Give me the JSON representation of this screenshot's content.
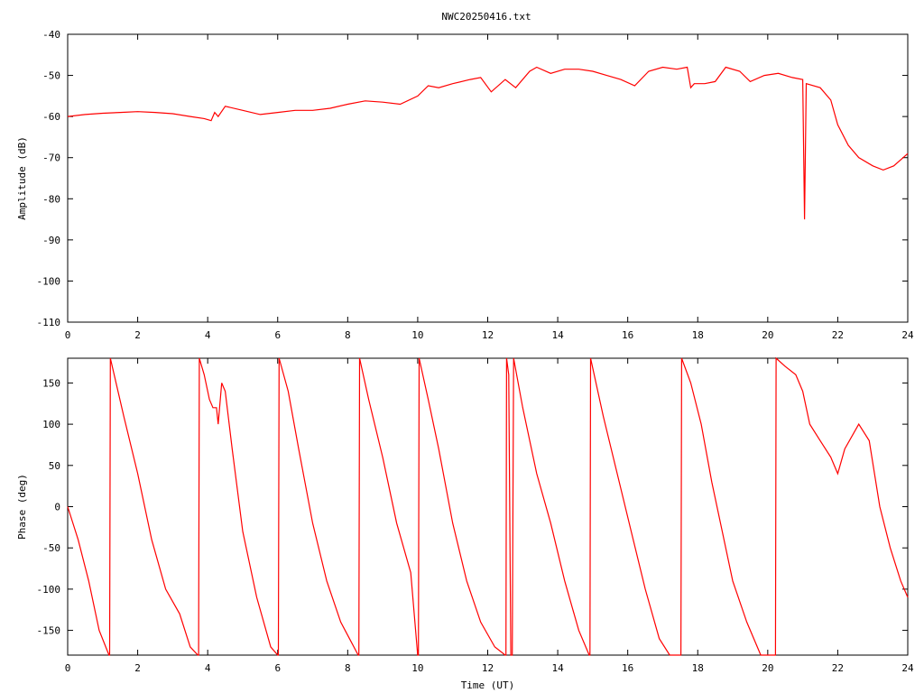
{
  "title": "NWC20250416.txt",
  "chart_data": [
    {
      "type": "line",
      "ylabel": "Amplitude (dB)",
      "xlabel": "",
      "xlim": [
        0,
        24
      ],
      "ylim": [
        -110,
        -40
      ],
      "xticks": [
        "0",
        "2",
        "4",
        "6",
        "8",
        "10",
        "12",
        "14",
        "16",
        "18",
        "20",
        "22",
        "24"
      ],
      "yticks": [
        "-40",
        "-50",
        "-60",
        "-70",
        "-80",
        "-90",
        "-100",
        "-110"
      ],
      "grid": false,
      "series": [
        {
          "color": "#ff0000",
          "x": [
            0,
            0.5,
            1.0,
            1.5,
            2.0,
            2.5,
            3.0,
            3.5,
            3.9,
            4.1,
            4.2,
            4.3,
            4.5,
            5.0,
            5.5,
            6.0,
            6.5,
            7.0,
            7.5,
            8.0,
            8.5,
            9.0,
            9.5,
            10.0,
            10.3,
            10.6,
            11.0,
            11.5,
            11.8,
            12.1,
            12.5,
            12.8,
            13.2,
            13.4,
            13.8,
            14.2,
            14.6,
            15.0,
            15.4,
            15.8,
            16.2,
            16.6,
            17.0,
            17.4,
            17.7,
            17.8,
            17.9,
            18.2,
            18.5,
            18.8,
            19.2,
            19.5,
            19.9,
            20.3,
            20.7,
            21.0,
            21.05,
            21.1,
            21.5,
            21.8,
            22.0,
            22.3,
            22.6,
            23.0,
            23.3,
            23.6,
            24.0
          ],
          "y": [
            -60,
            -59.5,
            -59.2,
            -59,
            -58.8,
            -59,
            -59.3,
            -60,
            -60.5,
            -61,
            -59,
            -60,
            -57.5,
            -58.5,
            -59.5,
            -59,
            -58.5,
            -58.5,
            -58,
            -57,
            -56.2,
            -56.5,
            -57,
            -55,
            -52.5,
            -53,
            -52,
            -51,
            -50.5,
            -54,
            -51,
            -53,
            -49,
            -48,
            -49.5,
            -48.5,
            -48.5,
            -49,
            -50,
            -51,
            -52.5,
            -49,
            -48,
            -48.5,
            -48,
            -53,
            -52,
            -52,
            -51.5,
            -48,
            -49,
            -51.5,
            -50,
            -49.5,
            -50.5,
            -51,
            -85,
            -52,
            -53,
            -56,
            -62,
            -67,
            -70,
            -72,
            -73,
            -72,
            -69
          ]
        }
      ]
    },
    {
      "type": "line",
      "ylabel": "Phase (deg)",
      "xlabel": "Time (UT)",
      "xlim": [
        0,
        24
      ],
      "ylim": [
        -180,
        180
      ],
      "xticks": [
        "0",
        "2",
        "4",
        "6",
        "8",
        "10",
        "12",
        "14",
        "16",
        "18",
        "20",
        "22",
        "24"
      ],
      "yticks": [
        "150",
        "100",
        "50",
        "0",
        "-50",
        "-100",
        "-150"
      ],
      "grid": false,
      "series": [
        {
          "color": "#ff0000",
          "x": [
            0,
            0.3,
            0.6,
            0.9,
            1.18,
            1.2,
            1.22,
            1.6,
            2.0,
            2.4,
            2.8,
            3.2,
            3.5,
            3.72,
            3.74,
            3.76,
            3.9,
            4.05,
            4.15,
            4.25,
            4.3,
            4.4,
            4.5,
            4.7,
            5.0,
            5.4,
            5.8,
            6.0,
            6.02,
            6.04,
            6.3,
            6.6,
            7.0,
            7.4,
            7.8,
            8.3,
            8.32,
            8.34,
            8.6,
            9.0,
            9.4,
            9.8,
            10.0,
            10.02,
            10.04,
            10.3,
            10.6,
            11.0,
            11.4,
            11.8,
            12.2,
            12.5,
            12.52,
            12.54,
            12.6,
            12.66,
            12.7,
            12.74,
            13.0,
            13.4,
            13.8,
            14.2,
            14.6,
            14.9,
            14.92,
            14.94,
            15.3,
            15.7,
            16.1,
            16.5,
            16.9,
            17.2,
            17.5,
            17.52,
            17.54,
            17.8,
            18.1,
            18.4,
            18.7,
            19.0,
            19.4,
            19.8,
            20.2,
            20.22,
            20.24,
            20.5,
            20.8,
            21.0,
            21.2,
            21.5,
            21.8,
            22.0,
            22.2,
            22.6,
            22.9,
            23.2,
            23.5,
            23.8,
            24.0
          ],
          "y": [
            0,
            -40,
            -90,
            -150,
            -180,
            -180,
            180,
            110,
            40,
            -40,
            -100,
            -130,
            -170,
            -180,
            -180,
            180,
            160,
            130,
            120,
            120,
            100,
            150,
            140,
            70,
            -30,
            -110,
            -170,
            -180,
            -180,
            180,
            140,
            70,
            -20,
            -90,
            -140,
            -180,
            -180,
            180,
            130,
            60,
            -20,
            -80,
            -180,
            -180,
            180,
            130,
            70,
            -20,
            -90,
            -140,
            -170,
            -180,
            -180,
            180,
            160,
            -180,
            -180,
            180,
            120,
            40,
            -20,
            -90,
            -150,
            -180,
            -180,
            180,
            110,
            40,
            -30,
            -100,
            -160,
            -180,
            -180,
            -180,
            180,
            150,
            100,
            30,
            -30,
            -90,
            -140,
            -180,
            -180,
            -180,
            180,
            170,
            160,
            140,
            100,
            80,
            60,
            40,
            70,
            100,
            80,
            0,
            -50,
            -90,
            -110
          ]
        }
      ]
    }
  ]
}
